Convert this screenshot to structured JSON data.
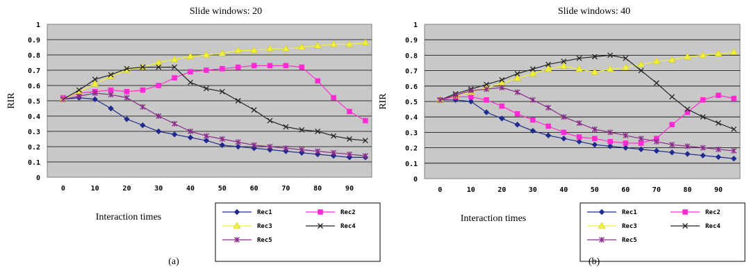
{
  "chart_data": [
    {
      "type": "line",
      "title": "Slide windows: 20",
      "xlabel": "Interaction times",
      "ylabel": "RIR",
      "caption": "(a)",
      "xlim": [
        -5,
        97
      ],
      "ylim": [
        0,
        1
      ],
      "x_ticks": [
        0,
        10,
        20,
        30,
        40,
        50,
        60,
        70,
        80,
        90
      ],
      "y_ticks": [
        0,
        0.1,
        0.2,
        0.3,
        0.4,
        0.5,
        0.6,
        0.7,
        0.8,
        0.9,
        1
      ],
      "y_tick_labels": [
        "0",
        "0.1",
        "0.2",
        "0.3",
        "0.4",
        "0.5",
        "0.6",
        "0.7",
        "0.8",
        "0.9",
        "1"
      ],
      "grid": true,
      "legend_position": "bottom-right",
      "x": [
        0,
        5,
        10,
        15,
        20,
        25,
        30,
        35,
        40,
        45,
        50,
        55,
        60,
        65,
        70,
        75,
        80,
        85,
        90,
        95
      ],
      "series": [
        {
          "name": "Rec1",
          "color": "#1f2a8c",
          "marker": "diamond",
          "values": [
            0.51,
            0.52,
            0.51,
            0.45,
            0.38,
            0.34,
            0.3,
            0.28,
            0.26,
            0.24,
            0.21,
            0.2,
            0.19,
            0.18,
            0.17,
            0.16,
            0.15,
            0.14,
            0.13,
            0.13
          ]
        },
        {
          "name": "Rec2",
          "color": "#ff2ad4",
          "marker": "square",
          "values": [
            0.52,
            0.55,
            0.56,
            0.57,
            0.56,
            0.57,
            0.6,
            0.65,
            0.69,
            0.7,
            0.71,
            0.72,
            0.73,
            0.73,
            0.73,
            0.72,
            0.63,
            0.52,
            0.43,
            0.37
          ]
        },
        {
          "name": "Rec3",
          "color": "#f2f03a",
          "marker": "triangle",
          "values": [
            0.51,
            0.56,
            0.61,
            0.66,
            0.7,
            0.72,
            0.75,
            0.77,
            0.79,
            0.8,
            0.81,
            0.83,
            0.83,
            0.84,
            0.84,
            0.85,
            0.86,
            0.87,
            0.87,
            0.88
          ]
        },
        {
          "name": "Rec4",
          "color": "#222222",
          "marker": "x",
          "values": [
            0.51,
            0.57,
            0.64,
            0.67,
            0.71,
            0.72,
            0.72,
            0.72,
            0.62,
            0.58,
            0.56,
            0.5,
            0.44,
            0.37,
            0.33,
            0.31,
            0.3,
            0.27,
            0.25,
            0.24
          ]
        },
        {
          "name": "Rec5",
          "color": "#8a2a8a",
          "marker": "star",
          "values": [
            0.51,
            0.53,
            0.55,
            0.54,
            0.52,
            0.46,
            0.4,
            0.35,
            0.3,
            0.27,
            0.25,
            0.23,
            0.21,
            0.2,
            0.19,
            0.18,
            0.17,
            0.16,
            0.15,
            0.14
          ]
        }
      ]
    },
    {
      "type": "line",
      "title": "Slide windows: 40",
      "xlabel": "Interaction times",
      "ylabel": "RIR",
      "caption": "(b)",
      "xlim": [
        -5,
        97
      ],
      "ylim": [
        0,
        1
      ],
      "x_ticks": [
        0,
        10,
        20,
        30,
        40,
        50,
        60,
        70,
        80,
        90
      ],
      "y_ticks": [
        0,
        0.1,
        0.2,
        0.3,
        0.4,
        0.5,
        0.6,
        0.7,
        0.8,
        0.9,
        1
      ],
      "y_tick_labels": [
        "0",
        "0.1",
        "0.2",
        "0.3",
        "0.4",
        "0.5",
        "0.6",
        "0.7",
        "0.8",
        "0.9",
        "1"
      ],
      "grid": true,
      "legend_position": "bottom-right",
      "x": [
        0,
        5,
        10,
        15,
        20,
        25,
        30,
        35,
        40,
        45,
        50,
        55,
        60,
        65,
        70,
        75,
        80,
        85,
        90,
        95
      ],
      "series": [
        {
          "name": "Rec1",
          "color": "#1f2a8c",
          "marker": "diamond",
          "values": [
            0.51,
            0.51,
            0.5,
            0.43,
            0.39,
            0.35,
            0.31,
            0.28,
            0.26,
            0.24,
            0.22,
            0.21,
            0.2,
            0.19,
            0.18,
            0.17,
            0.16,
            0.15,
            0.14,
            0.13
          ]
        },
        {
          "name": "Rec2",
          "color": "#ff2ad4",
          "marker": "square",
          "values": [
            0.51,
            0.53,
            0.53,
            0.51,
            0.47,
            0.42,
            0.38,
            0.34,
            0.3,
            0.27,
            0.26,
            0.24,
            0.23,
            0.23,
            0.26,
            0.35,
            0.43,
            0.51,
            0.54,
            0.52
          ]
        },
        {
          "name": "Rec3",
          "color": "#f2f03a",
          "marker": "triangle",
          "values": [
            0.51,
            0.54,
            0.56,
            0.59,
            0.62,
            0.65,
            0.68,
            0.71,
            0.73,
            0.71,
            0.69,
            0.71,
            0.72,
            0.74,
            0.76,
            0.77,
            0.79,
            0.8,
            0.81,
            0.82
          ]
        },
        {
          "name": "Rec4",
          "color": "#222222",
          "marker": "x",
          "values": [
            0.51,
            0.55,
            0.58,
            0.61,
            0.64,
            0.68,
            0.71,
            0.74,
            0.76,
            0.78,
            0.79,
            0.8,
            0.78,
            0.7,
            0.62,
            0.53,
            0.45,
            0.4,
            0.36,
            0.32
          ]
        },
        {
          "name": "Rec5",
          "color": "#8a2a8a",
          "marker": "star",
          "values": [
            0.51,
            0.54,
            0.57,
            0.58,
            0.59,
            0.56,
            0.51,
            0.46,
            0.4,
            0.36,
            0.32,
            0.3,
            0.28,
            0.26,
            0.24,
            0.22,
            0.21,
            0.2,
            0.19,
            0.18
          ]
        }
      ]
    }
  ]
}
